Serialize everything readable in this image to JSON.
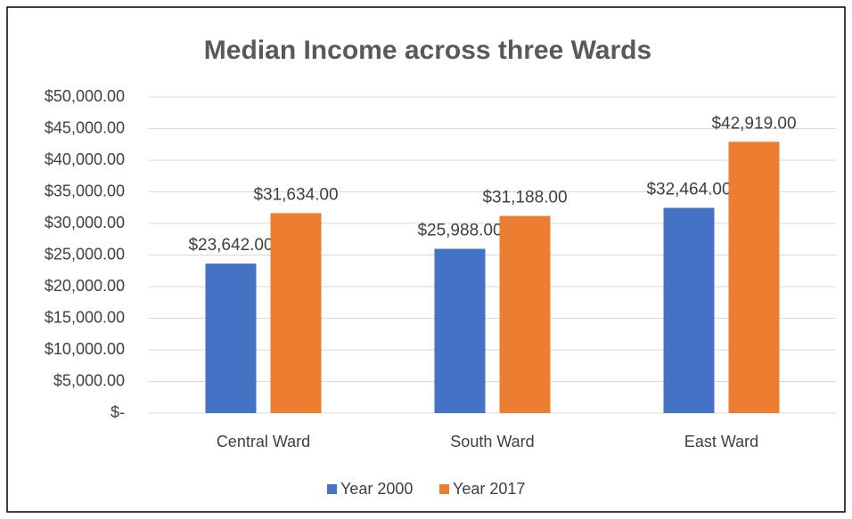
{
  "chart_data": {
    "type": "bar",
    "title": "Median Income across three Wards",
    "categories": [
      "Central Ward",
      "South Ward",
      "East Ward"
    ],
    "series": [
      {
        "name": "Year 2000",
        "color": "#4472c4",
        "values": [
          23642,
          25988,
          32464
        ],
        "value_labels": [
          "$23,642.00",
          "$25,988.00",
          "$32,464.00"
        ]
      },
      {
        "name": "Year 2017",
        "color": "#ed7d31",
        "values": [
          31634,
          31188,
          42919
        ],
        "value_labels": [
          "$31,634.00",
          "$31,188.00",
          "$42,919.00"
        ]
      }
    ],
    "ylim": [
      0,
      50000
    ],
    "yticks": [
      {
        "value": 0,
        "label": "$-"
      },
      {
        "value": 5000,
        "label": "$5,000.00"
      },
      {
        "value": 10000,
        "label": "$10,000.00"
      },
      {
        "value": 15000,
        "label": "$15,000.00"
      },
      {
        "value": 20000,
        "label": "$20,000.00"
      },
      {
        "value": 25000,
        "label": "$25,000.00"
      },
      {
        "value": 30000,
        "label": "$30,000.00"
      },
      {
        "value": 35000,
        "label": "$35,000.00"
      },
      {
        "value": 40000,
        "label": "$40,000.00"
      },
      {
        "value": 45000,
        "label": "$45,000.00"
      },
      {
        "value": 50000,
        "label": "$50,000.00"
      }
    ],
    "grid": true,
    "legend": "bottom"
  }
}
